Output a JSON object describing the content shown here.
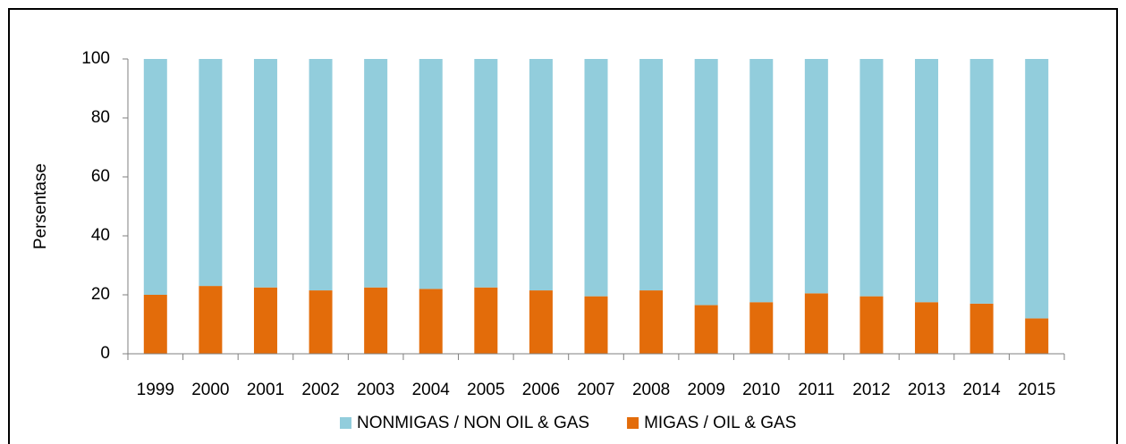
{
  "chart_data": {
    "type": "stacked_bar",
    "y_label": "Persentase",
    "categories": [
      "1999",
      "2000",
      "2001",
      "2002",
      "2003",
      "2004",
      "2005",
      "2006",
      "2007",
      "2008",
      "2009",
      "2010",
      "2011",
      "2012",
      "2013",
      "2014",
      "2015"
    ],
    "series": [
      {
        "name": "MIGAS / OIL & GAS",
        "color": "#e36c0a",
        "values": [
          20,
          23,
          22.5,
          21.5,
          22.5,
          22,
          22.5,
          21.5,
          19.5,
          21.5,
          16.5,
          17.5,
          20.5,
          19.5,
          17.5,
          17,
          12
        ]
      },
      {
        "name": "NONMIGAS / NON OIL & GAS",
        "color": "#92cddc",
        "values": [
          80,
          77,
          77.5,
          78.5,
          77.5,
          78,
          77.5,
          78.5,
          80.5,
          78.5,
          83.5,
          82.5,
          79.5,
          80.5,
          82.5,
          83,
          88
        ]
      }
    ],
    "ylim": [
      0,
      100
    ],
    "yticks": [
      0,
      20,
      40,
      60,
      80,
      100
    ],
    "grid": false,
    "legend": "bottom"
  }
}
